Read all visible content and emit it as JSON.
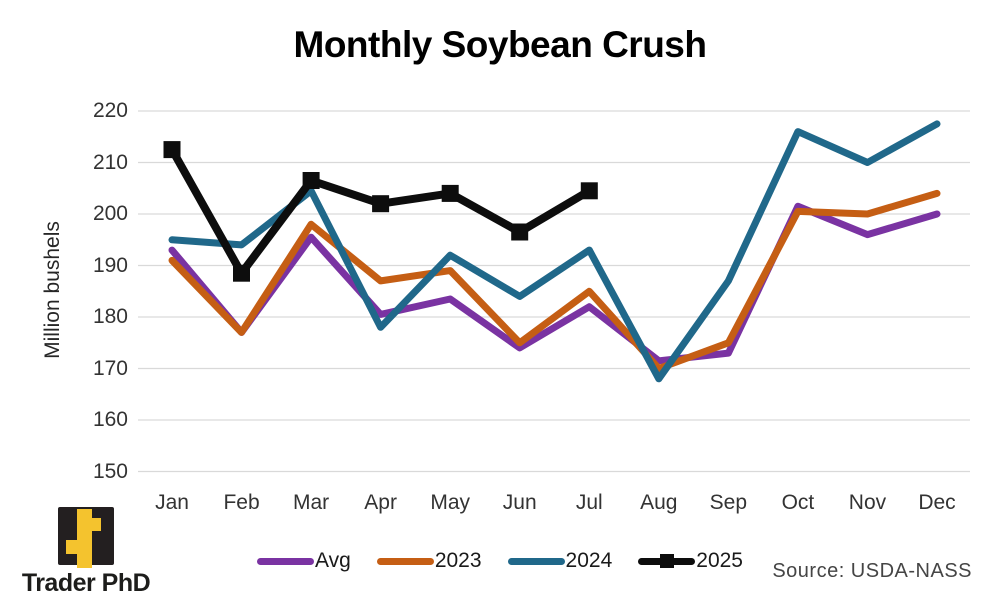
{
  "chart_data": {
    "type": "line",
    "title": "Monthly Soybean Crush",
    "xlabel": "",
    "ylabel": "Million bushels",
    "categories": [
      "Jan",
      "Feb",
      "Mar",
      "Apr",
      "May",
      "Jun",
      "Jul",
      "Aug",
      "Sep",
      "Oct",
      "Nov",
      "Dec"
    ],
    "ylim": [
      150,
      220
    ],
    "ytick_step": 10,
    "grid": true,
    "legend_position": "bottom",
    "grid_color": "#d9d9d9",
    "series": [
      {
        "name": "Avg",
        "color": "#7A33A2",
        "marker": "none",
        "values": [
          193,
          177,
          195.5,
          180.5,
          183.5,
          174,
          182,
          171.5,
          173,
          201.5,
          196,
          200
        ]
      },
      {
        "name": "2023",
        "color": "#C55E14",
        "marker": "none",
        "values": [
          191,
          177,
          198,
          187,
          189,
          175,
          185,
          170,
          175,
          200.5,
          200,
          204
        ]
      },
      {
        "name": "2024",
        "color": "#20688A",
        "marker": "none",
        "values": [
          195,
          194,
          204.5,
          178,
          192,
          184,
          193,
          168,
          187,
          216,
          210,
          217.5
        ]
      },
      {
        "name": "2025",
        "color": "#0D0D0D",
        "marker": "square",
        "values": [
          212.5,
          188.5,
          206.5,
          202,
          204,
          196.5,
          204.5,
          null,
          null,
          null,
          null,
          null
        ]
      }
    ],
    "source": "Source: USDA-NASS"
  },
  "branding": {
    "logo_text": "Trader PhD",
    "square_color": "#231F20",
    "glyph_color": "#F4C32E"
  }
}
